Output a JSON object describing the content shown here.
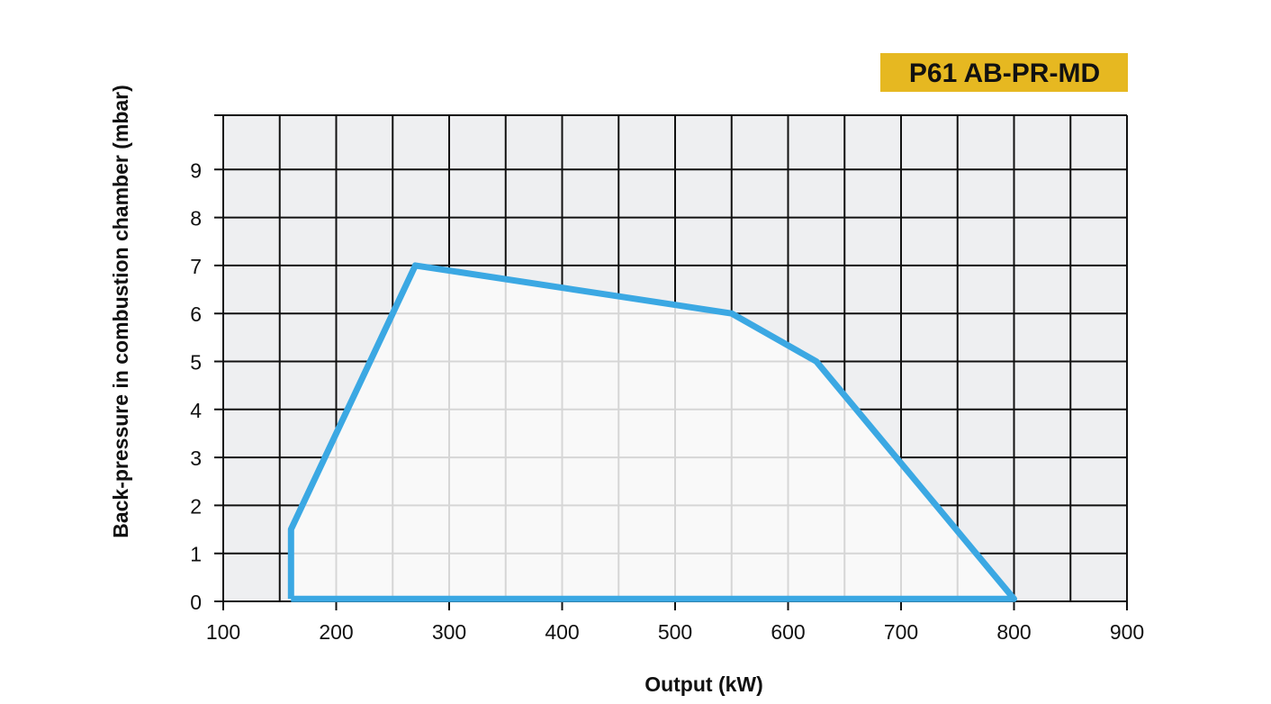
{
  "chart_data": {
    "type": "area",
    "title": "P61 AB-PR-MD",
    "xlabel": "Output (kW)",
    "ylabel": "Back-pressure in combustion chamber (mbar)",
    "xlim": [
      100,
      900
    ],
    "ylim": [
      0,
      10.5
    ],
    "x_ticks": [
      "100",
      "200",
      "300",
      "400",
      "500",
      "600",
      "700",
      "800",
      "900"
    ],
    "y_ticks": [
      "0",
      "1",
      "2",
      "3",
      "4",
      "5",
      "6",
      "7",
      "8",
      "9"
    ],
    "grid": true,
    "x_grid_step": 50,
    "y_grid_step": 1,
    "series": [
      {
        "x": [
          160,
          160,
          270,
          550,
          625,
          800
        ],
        "y": [
          0.05,
          1.5,
          7.0,
          6.0,
          5.0,
          0.05
        ]
      }
    ]
  },
  "colors": {
    "plot_background": "#eeeff1",
    "region_fill": "#f9f9f9",
    "grid_major": "#111111",
    "grid_inside_region": "#d6d6d6",
    "curve": "#3ba8e3",
    "badge_background": "#e6b821"
  }
}
